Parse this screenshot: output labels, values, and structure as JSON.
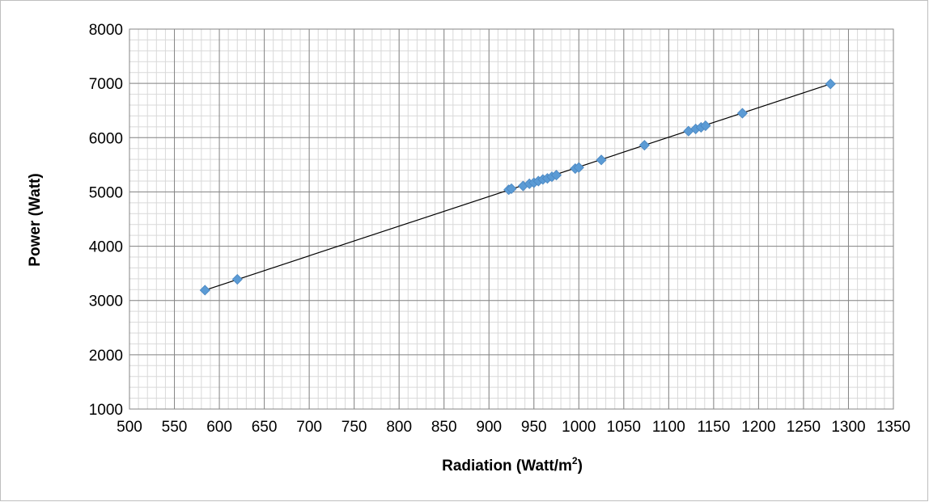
{
  "chart_data": {
    "type": "scatter",
    "title": "",
    "xlabel_main": "Radiation (Watt/m",
    "xlabel_sup": "2",
    "xlabel_tail": ")",
    "ylabel": "Power (Watt)",
    "xlim": [
      500,
      1350
    ],
    "ylim": [
      1000,
      8000
    ],
    "x_ticks": [
      "500",
      "550",
      "600",
      "650",
      "700",
      "750",
      "800",
      "850",
      "900",
      "950",
      "1000",
      "1050",
      "1100",
      "1150",
      "1200",
      "1250",
      "1300",
      "1350"
    ],
    "y_ticks": [
      "1000",
      "2000",
      "3000",
      "4000",
      "5000",
      "6000",
      "7000",
      "8000"
    ],
    "grid": true,
    "legend": "none",
    "marker_color": "#5b9bd5",
    "trendline": {
      "type": "linear",
      "color": "#000000",
      "from": [
        584,
        3190
      ],
      "to": [
        1280,
        6990
      ]
    },
    "points": [
      [
        584,
        3190
      ],
      [
        620,
        3390
      ],
      [
        922,
        5040
      ],
      [
        925,
        5060
      ],
      [
        938,
        5110
      ],
      [
        945,
        5150
      ],
      [
        950,
        5170
      ],
      [
        955,
        5200
      ],
      [
        960,
        5230
      ],
      [
        965,
        5250
      ],
      [
        970,
        5280
      ],
      [
        975,
        5310
      ],
      [
        996,
        5430
      ],
      [
        1000,
        5450
      ],
      [
        1025,
        5590
      ],
      [
        1073,
        5860
      ],
      [
        1122,
        6120
      ],
      [
        1130,
        6160
      ],
      [
        1136,
        6190
      ],
      [
        1141,
        6220
      ],
      [
        1182,
        6450
      ],
      [
        1280,
        6990
      ]
    ]
  }
}
